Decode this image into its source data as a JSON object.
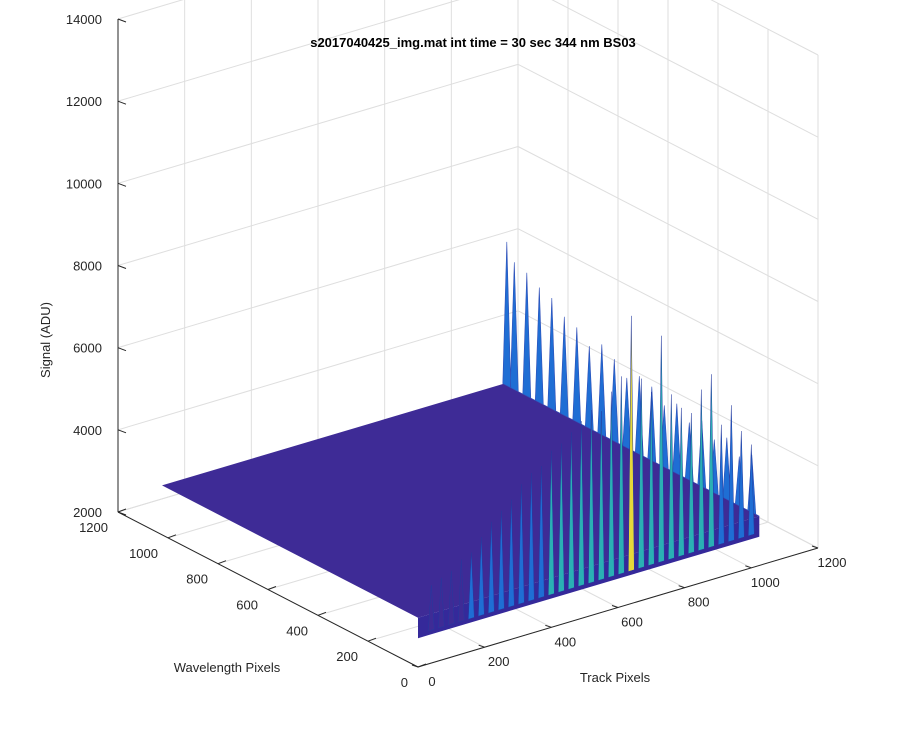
{
  "chart_data": {
    "type": "surface",
    "title": "s2017040425_img.mat int time = 30 sec  344 nm BS03",
    "xlabel": "Track Pixels",
    "ylabel": "Wavelength Pixels",
    "zlabel": "Signal (ADU)",
    "x_ticks": [
      "0",
      "200",
      "400",
      "600",
      "800",
      "1000",
      "1200"
    ],
    "y_ticks": [
      "0",
      "200",
      "400",
      "600",
      "800",
      "1000",
      "1200"
    ],
    "z_ticks": [
      "2000",
      "4000",
      "6000",
      "8000",
      "10000",
      "12000",
      "14000"
    ],
    "xlim": [
      0,
      1200
    ],
    "ylim": [
      0,
      1200
    ],
    "zlim": [
      2000,
      14000
    ],
    "grid": true,
    "colormap": "parula",
    "baseline": 3200,
    "surface_extent": {
      "x": [
        0,
        1024
      ],
      "y": [
        0,
        1024
      ]
    },
    "edge_profile_x_at_y0": {
      "x": [
        40,
        70,
        100,
        130,
        160,
        190,
        220,
        250,
        280,
        310,
        340,
        370,
        400,
        430,
        460,
        490,
        520,
        550,
        580,
        610,
        640,
        670,
        700,
        730,
        760,
        790,
        820,
        850,
        880,
        910,
        940,
        970,
        1000
      ],
      "peak": [
        3900,
        4000,
        4100,
        4300,
        4400,
        4700,
        5000,
        5200,
        5400,
        5700,
        5900,
        6000,
        6300,
        6400,
        6600,
        6800,
        7000,
        6900,
        7300,
        7600,
        9000,
        7400,
        7000,
        8300,
        6800,
        6400,
        6200,
        6700,
        7000,
        5700,
        6100,
        5400,
        5000
      ]
    },
    "edge_profile_y_at_x1024": {
      "y": [
        30,
        80,
        130,
        180,
        230,
        280,
        330,
        380,
        430,
        480,
        530,
        580,
        630,
        680,
        730,
        780,
        830,
        880,
        930,
        980,
        1010
      ],
      "peak": [
        4600,
        4400,
        4700,
        4500,
        4800,
        4600,
        4900,
        4700,
        5000,
        5100,
        4900,
        5200,
        5400,
        5200,
        5500,
        5600,
        5900,
        6000,
        6200,
        6300,
        6700
      ]
    },
    "colors": {
      "surface_low": "#3e2b96",
      "surface_mid": "#1f6ed4",
      "surface_high": "#2ab0b4",
      "surface_peak": "#e6d83a",
      "grid": "#dedede",
      "axis": "#262626"
    }
  }
}
